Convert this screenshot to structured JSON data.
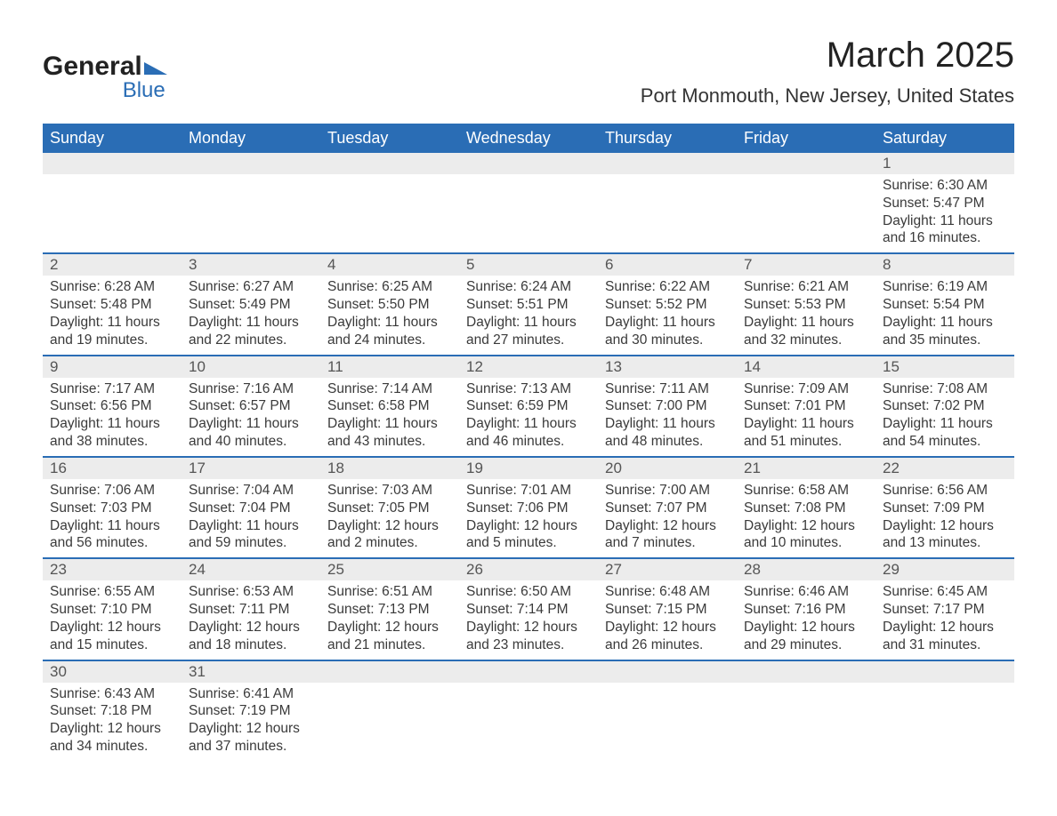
{
  "logo": {
    "name_part1": "General",
    "name_part2": "Blue",
    "accent_color": "#2a6db5"
  },
  "header": {
    "month_title": "March 2025",
    "location": "Port Monmouth, New Jersey, United States"
  },
  "colors": {
    "header_row_bg": "#2a6db5",
    "daynum_bg": "#ececec",
    "week_border": "#2a6db5",
    "text": "#333333"
  },
  "day_headers": [
    "Sunday",
    "Monday",
    "Tuesday",
    "Wednesday",
    "Thursday",
    "Friday",
    "Saturday"
  ],
  "weeks": [
    [
      {
        "n": "",
        "sunrise": "",
        "sunset": "",
        "daylight1": "",
        "daylight2": ""
      },
      {
        "n": "",
        "sunrise": "",
        "sunset": "",
        "daylight1": "",
        "daylight2": ""
      },
      {
        "n": "",
        "sunrise": "",
        "sunset": "",
        "daylight1": "",
        "daylight2": ""
      },
      {
        "n": "",
        "sunrise": "",
        "sunset": "",
        "daylight1": "",
        "daylight2": ""
      },
      {
        "n": "",
        "sunrise": "",
        "sunset": "",
        "daylight1": "",
        "daylight2": ""
      },
      {
        "n": "",
        "sunrise": "",
        "sunset": "",
        "daylight1": "",
        "daylight2": ""
      },
      {
        "n": "1",
        "sunrise": "Sunrise: 6:30 AM",
        "sunset": "Sunset: 5:47 PM",
        "daylight1": "Daylight: 11 hours",
        "daylight2": "and 16 minutes."
      }
    ],
    [
      {
        "n": "2",
        "sunrise": "Sunrise: 6:28 AM",
        "sunset": "Sunset: 5:48 PM",
        "daylight1": "Daylight: 11 hours",
        "daylight2": "and 19 minutes."
      },
      {
        "n": "3",
        "sunrise": "Sunrise: 6:27 AM",
        "sunset": "Sunset: 5:49 PM",
        "daylight1": "Daylight: 11 hours",
        "daylight2": "and 22 minutes."
      },
      {
        "n": "4",
        "sunrise": "Sunrise: 6:25 AM",
        "sunset": "Sunset: 5:50 PM",
        "daylight1": "Daylight: 11 hours",
        "daylight2": "and 24 minutes."
      },
      {
        "n": "5",
        "sunrise": "Sunrise: 6:24 AM",
        "sunset": "Sunset: 5:51 PM",
        "daylight1": "Daylight: 11 hours",
        "daylight2": "and 27 minutes."
      },
      {
        "n": "6",
        "sunrise": "Sunrise: 6:22 AM",
        "sunset": "Sunset: 5:52 PM",
        "daylight1": "Daylight: 11 hours",
        "daylight2": "and 30 minutes."
      },
      {
        "n": "7",
        "sunrise": "Sunrise: 6:21 AM",
        "sunset": "Sunset: 5:53 PM",
        "daylight1": "Daylight: 11 hours",
        "daylight2": "and 32 minutes."
      },
      {
        "n": "8",
        "sunrise": "Sunrise: 6:19 AM",
        "sunset": "Sunset: 5:54 PM",
        "daylight1": "Daylight: 11 hours",
        "daylight2": "and 35 minutes."
      }
    ],
    [
      {
        "n": "9",
        "sunrise": "Sunrise: 7:17 AM",
        "sunset": "Sunset: 6:56 PM",
        "daylight1": "Daylight: 11 hours",
        "daylight2": "and 38 minutes."
      },
      {
        "n": "10",
        "sunrise": "Sunrise: 7:16 AM",
        "sunset": "Sunset: 6:57 PM",
        "daylight1": "Daylight: 11 hours",
        "daylight2": "and 40 minutes."
      },
      {
        "n": "11",
        "sunrise": "Sunrise: 7:14 AM",
        "sunset": "Sunset: 6:58 PM",
        "daylight1": "Daylight: 11 hours",
        "daylight2": "and 43 minutes."
      },
      {
        "n": "12",
        "sunrise": "Sunrise: 7:13 AM",
        "sunset": "Sunset: 6:59 PM",
        "daylight1": "Daylight: 11 hours",
        "daylight2": "and 46 minutes."
      },
      {
        "n": "13",
        "sunrise": "Sunrise: 7:11 AM",
        "sunset": "Sunset: 7:00 PM",
        "daylight1": "Daylight: 11 hours",
        "daylight2": "and 48 minutes."
      },
      {
        "n": "14",
        "sunrise": "Sunrise: 7:09 AM",
        "sunset": "Sunset: 7:01 PM",
        "daylight1": "Daylight: 11 hours",
        "daylight2": "and 51 minutes."
      },
      {
        "n": "15",
        "sunrise": "Sunrise: 7:08 AM",
        "sunset": "Sunset: 7:02 PM",
        "daylight1": "Daylight: 11 hours",
        "daylight2": "and 54 minutes."
      }
    ],
    [
      {
        "n": "16",
        "sunrise": "Sunrise: 7:06 AM",
        "sunset": "Sunset: 7:03 PM",
        "daylight1": "Daylight: 11 hours",
        "daylight2": "and 56 minutes."
      },
      {
        "n": "17",
        "sunrise": "Sunrise: 7:04 AM",
        "sunset": "Sunset: 7:04 PM",
        "daylight1": "Daylight: 11 hours",
        "daylight2": "and 59 minutes."
      },
      {
        "n": "18",
        "sunrise": "Sunrise: 7:03 AM",
        "sunset": "Sunset: 7:05 PM",
        "daylight1": "Daylight: 12 hours",
        "daylight2": "and 2 minutes."
      },
      {
        "n": "19",
        "sunrise": "Sunrise: 7:01 AM",
        "sunset": "Sunset: 7:06 PM",
        "daylight1": "Daylight: 12 hours",
        "daylight2": "and 5 minutes."
      },
      {
        "n": "20",
        "sunrise": "Sunrise: 7:00 AM",
        "sunset": "Sunset: 7:07 PM",
        "daylight1": "Daylight: 12 hours",
        "daylight2": "and 7 minutes."
      },
      {
        "n": "21",
        "sunrise": "Sunrise: 6:58 AM",
        "sunset": "Sunset: 7:08 PM",
        "daylight1": "Daylight: 12 hours",
        "daylight2": "and 10 minutes."
      },
      {
        "n": "22",
        "sunrise": "Sunrise: 6:56 AM",
        "sunset": "Sunset: 7:09 PM",
        "daylight1": "Daylight: 12 hours",
        "daylight2": "and 13 minutes."
      }
    ],
    [
      {
        "n": "23",
        "sunrise": "Sunrise: 6:55 AM",
        "sunset": "Sunset: 7:10 PM",
        "daylight1": "Daylight: 12 hours",
        "daylight2": "and 15 minutes."
      },
      {
        "n": "24",
        "sunrise": "Sunrise: 6:53 AM",
        "sunset": "Sunset: 7:11 PM",
        "daylight1": "Daylight: 12 hours",
        "daylight2": "and 18 minutes."
      },
      {
        "n": "25",
        "sunrise": "Sunrise: 6:51 AM",
        "sunset": "Sunset: 7:13 PM",
        "daylight1": "Daylight: 12 hours",
        "daylight2": "and 21 minutes."
      },
      {
        "n": "26",
        "sunrise": "Sunrise: 6:50 AM",
        "sunset": "Sunset: 7:14 PM",
        "daylight1": "Daylight: 12 hours",
        "daylight2": "and 23 minutes."
      },
      {
        "n": "27",
        "sunrise": "Sunrise: 6:48 AM",
        "sunset": "Sunset: 7:15 PM",
        "daylight1": "Daylight: 12 hours",
        "daylight2": "and 26 minutes."
      },
      {
        "n": "28",
        "sunrise": "Sunrise: 6:46 AM",
        "sunset": "Sunset: 7:16 PM",
        "daylight1": "Daylight: 12 hours",
        "daylight2": "and 29 minutes."
      },
      {
        "n": "29",
        "sunrise": "Sunrise: 6:45 AM",
        "sunset": "Sunset: 7:17 PM",
        "daylight1": "Daylight: 12 hours",
        "daylight2": "and 31 minutes."
      }
    ],
    [
      {
        "n": "30",
        "sunrise": "Sunrise: 6:43 AM",
        "sunset": "Sunset: 7:18 PM",
        "daylight1": "Daylight: 12 hours",
        "daylight2": "and 34 minutes."
      },
      {
        "n": "31",
        "sunrise": "Sunrise: 6:41 AM",
        "sunset": "Sunset: 7:19 PM",
        "daylight1": "Daylight: 12 hours",
        "daylight2": "and 37 minutes."
      },
      {
        "n": "",
        "sunrise": "",
        "sunset": "",
        "daylight1": "",
        "daylight2": ""
      },
      {
        "n": "",
        "sunrise": "",
        "sunset": "",
        "daylight1": "",
        "daylight2": ""
      },
      {
        "n": "",
        "sunrise": "",
        "sunset": "",
        "daylight1": "",
        "daylight2": ""
      },
      {
        "n": "",
        "sunrise": "",
        "sunset": "",
        "daylight1": "",
        "daylight2": ""
      },
      {
        "n": "",
        "sunrise": "",
        "sunset": "",
        "daylight1": "",
        "daylight2": ""
      }
    ]
  ]
}
